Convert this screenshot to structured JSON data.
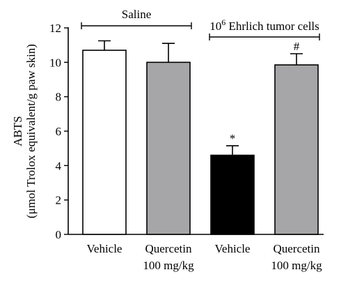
{
  "chart_data": {
    "type": "bar",
    "title": "",
    "xlabel": "",
    "ylabel_line1": "ABTS",
    "ylabel_line2": "(μmol Trolox equivalent/g paw skin)",
    "ylim": [
      0,
      12
    ],
    "yticks": [
      "0",
      "2",
      "4",
      "6",
      "8",
      "10",
      "12"
    ],
    "categories": [
      {
        "line1": "Vehicle",
        "line2": ""
      },
      {
        "line1": "Quercetin",
        "line2": "100 mg/kg"
      },
      {
        "line1": "Vehicle",
        "line2": ""
      },
      {
        "line1": "Quercetin",
        "line2": "100 mg/kg"
      }
    ],
    "values": [
      10.7,
      10.0,
      4.6,
      9.85
    ],
    "errors": [
      0.55,
      1.1,
      0.55,
      0.65
    ],
    "bar_colors": [
      "#ffffff",
      "#a6a6a8",
      "#000000",
      "#a6a6a8"
    ],
    "markers": [
      "",
      "",
      "*",
      "#"
    ],
    "groups": [
      {
        "label": "Saline",
        "sup": "",
        "span": [
          0,
          1
        ]
      },
      {
        "label": " Ehrlich tumor cells",
        "sup": "6",
        "prefix": "10",
        "span": [
          2,
          3
        ]
      }
    ]
  }
}
